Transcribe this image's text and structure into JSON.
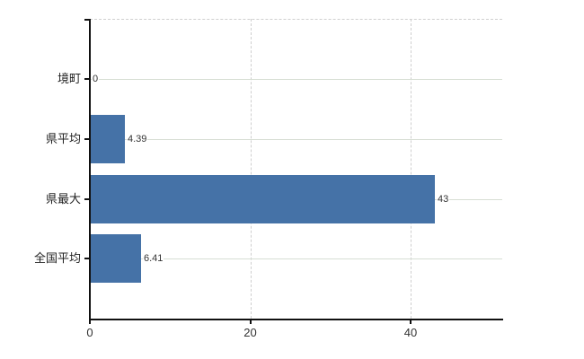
{
  "chart_data": {
    "type": "bar",
    "orientation": "horizontal",
    "title": "",
    "categories": [
      "境町",
      "県平均",
      "県最大",
      "全国平均"
    ],
    "values": [
      0,
      4.39,
      43,
      6.41
    ],
    "data_labels": [
      "0",
      "4.39",
      "43",
      "6.41"
    ],
    "value_axis": {
      "ticks": [
        0,
        20,
        40
      ],
      "tick_labels": [
        "0",
        "20",
        "40"
      ],
      "min": 0,
      "max": 51.4
    },
    "grid": {
      "category_gridlines": "solid",
      "value_gridlines": "dashed",
      "top_border": "dashed"
    },
    "legend": false,
    "colors": {
      "bar": "#4572a7",
      "category_gridline": "#d7ded4",
      "value_gridline": "#cfcfcf",
      "axis": "#111111",
      "category_label_text": "#222222",
      "data_label_text": "#333333",
      "tick_label_text": "#333333",
      "background": "#ffffff"
    }
  }
}
